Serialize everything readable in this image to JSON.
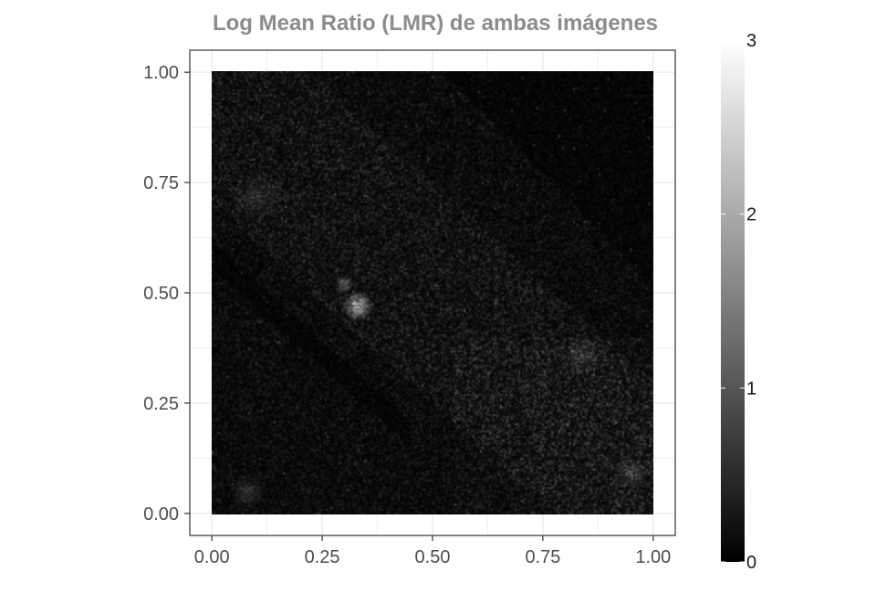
{
  "chart_data": {
    "type": "heatmap",
    "title": "Log Mean Ratio (LMR) de ambas imágenes",
    "xlabel": "",
    "ylabel": "",
    "xlim": [
      -0.05,
      1.05
    ],
    "ylim": [
      -0.05,
      1.05
    ],
    "x_ticks": [
      0.0,
      0.25,
      0.5,
      0.75,
      1.0
    ],
    "x_tick_labels": [
      "0.00",
      "0.25",
      "0.50",
      "0.75",
      "1.00"
    ],
    "y_ticks": [
      0.0,
      0.25,
      0.5,
      0.75,
      1.0
    ],
    "y_tick_labels": [
      "0.00",
      "0.25",
      "0.50",
      "0.75",
      "1.00"
    ],
    "grid": true,
    "colorscale": {
      "low": "#000000",
      "high": "#ffffff",
      "min": 0,
      "max": 3
    },
    "colorbar_ticks": [
      0,
      1,
      2,
      3
    ],
    "colorbar_tick_labels": [
      "0",
      "1",
      "2",
      "3"
    ],
    "legend_position": "right",
    "field_description": "Mostly dark noisy field (values ~0–0.6); darker diagonal band from top-center to right-center; brighter speckle in left-center and lower-right regions; bright cluster near (0.33, 0.47) up to ~2.5"
  }
}
